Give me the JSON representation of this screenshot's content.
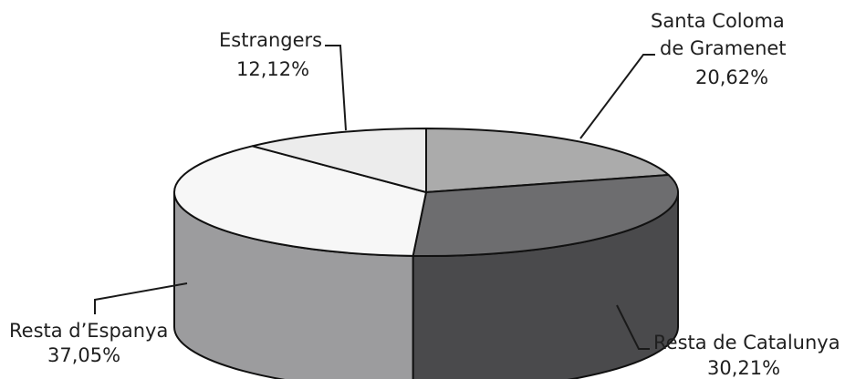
{
  "chart_data": {
    "type": "pie",
    "style": "3d",
    "slices": [
      {
        "label_lines": [
          "Santa Coloma",
          "de Gramenet"
        ],
        "pct_text": "20,62%",
        "value": 20.62,
        "color": "#ababab",
        "side_color": "#8e8e8e"
      },
      {
        "label_lines": [
          "Resta de Catalunya"
        ],
        "pct_text": "30,21%",
        "value": 30.21,
        "color": "#6d6d6f",
        "side_color": "#4a4a4c"
      },
      {
        "label_lines": [
          "Resta d’Espanya"
        ],
        "pct_text": "37,05%",
        "value": 37.05,
        "color": "#f7f7f7",
        "side_color": "#9c9c9e"
      },
      {
        "label_lines": [
          "Estrangers"
        ],
        "pct_text": "12,12%",
        "value": 12.12,
        "color": "#ececec",
        "side_color": "#cfcfcf"
      }
    ]
  }
}
